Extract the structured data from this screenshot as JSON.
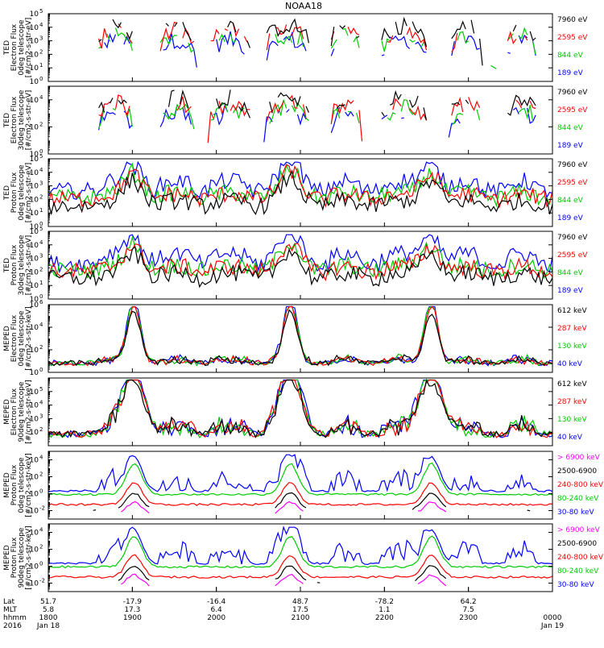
{
  "title": "NOAA18",
  "chart_data": [
    {
      "type": "line",
      "ylabel_lines": [
        "TED",
        "Electron Flux",
        "0deg telescope",
        "[#/cm2-s-str-eV]"
      ],
      "ylim_exp": [
        0,
        5
      ],
      "ytick_exps": [
        0,
        1,
        2,
        3,
        4,
        5
      ],
      "top_tick_label": "10",
      "series": [
        {
          "name": "7960 eV",
          "color": "#000000"
        },
        {
          "name": "2595 eV",
          "color": "#ff0000"
        },
        {
          "name": "844 eV",
          "color": "#00cc00"
        },
        {
          "name": "189 eV",
          "color": "#0000ff"
        }
      ]
    },
    {
      "type": "line",
      "ylabel_lines": [
        "TED",
        "Electron Flux",
        "30deg telescope",
        "[#/cm2-s-str-eV]"
      ],
      "ylim_exp": [
        0,
        5
      ],
      "ytick_exps": [
        0,
        2,
        4
      ],
      "top_tick_label": "10",
      "series": [
        {
          "name": "7960 eV",
          "color": "#000000"
        },
        {
          "name": "2595 eV",
          "color": "#ff0000"
        },
        {
          "name": "844 eV",
          "color": "#00cc00"
        },
        {
          "name": "189 eV",
          "color": "#0000ff"
        }
      ]
    },
    {
      "type": "line",
      "ylabel_lines": [
        "TED",
        "Proton Flux",
        "0deg telescope",
        "[#/cm2-s-str-eV]"
      ],
      "ylim_exp": [
        0,
        5
      ],
      "ytick_exps": [
        0,
        1,
        2,
        3,
        4,
        5
      ],
      "top_tick_label": "10",
      "series": [
        {
          "name": "7960 eV",
          "color": "#000000"
        },
        {
          "name": "2595 eV",
          "color": "#ff0000"
        },
        {
          "name": "844 eV",
          "color": "#00cc00"
        },
        {
          "name": "189 eV",
          "color": "#0000ff"
        }
      ]
    },
    {
      "type": "line",
      "ylabel_lines": [
        "TED",
        "Proton Flux",
        "30deg telescope",
        "[#/cm2-s-str-eV]"
      ],
      "ylim_exp": [
        0,
        5
      ],
      "ytick_exps": [
        0,
        1,
        2,
        3,
        4,
        5
      ],
      "top_tick_label": "10",
      "series": [
        {
          "name": "7960 eV",
          "color": "#000000"
        },
        {
          "name": "2595 eV",
          "color": "#ff0000"
        },
        {
          "name": "844 eV",
          "color": "#00cc00"
        },
        {
          "name": "189 eV",
          "color": "#0000ff"
        }
      ]
    },
    {
      "type": "line",
      "ylabel_lines": [
        "MEPED",
        "Electron Flux",
        "0deg telescope",
        "[#/cm2-s-str-keV]"
      ],
      "ylim_exp": [
        0,
        6
      ],
      "ytick_exps": [
        0,
        2,
        4,
        6
      ],
      "series": [
        {
          "name": "612 keV",
          "color": "#000000"
        },
        {
          "name": "287 keV",
          "color": "#ff0000"
        },
        {
          "name": "130 keV",
          "color": "#00cc00"
        },
        {
          "name": "40 keV",
          "color": "#0000ff"
        }
      ]
    },
    {
      "type": "line",
      "ylabel_lines": [
        "MEPED",
        "Electron Flux",
        "90deg telescope",
        "[#/cm2-s-str-keV]"
      ],
      "ylim_exp": [
        1,
        6
      ],
      "ytick_exps": [
        2,
        3,
        4,
        5
      ],
      "series": [
        {
          "name": "612 keV",
          "color": "#000000"
        },
        {
          "name": "287 keV",
          "color": "#ff0000"
        },
        {
          "name": "130 keV",
          "color": "#00cc00"
        },
        {
          "name": "40 keV",
          "color": "#0000ff"
        }
      ]
    },
    {
      "type": "line",
      "ylabel_lines": [
        "MEPED",
        "Proton Flux",
        "0deg telescope",
        "[#/cm2-s-str-keV]"
      ],
      "ylim_exp": [
        -3,
        5
      ],
      "ytick_exps": [
        -2,
        0,
        2,
        4
      ],
      "series": [
        {
          "name": "> 6900 keV",
          "color": "#ff00ff"
        },
        {
          "name": "2500-6900",
          "color": "#000000"
        },
        {
          "name": "240-800 keV",
          "color": "#ff0000"
        },
        {
          "name": "80-240 keV",
          "color": "#00cc00"
        },
        {
          "name": "30-80 keV",
          "color": "#0000ff"
        }
      ]
    },
    {
      "type": "line",
      "ylabel_lines": [
        "MEPED",
        "Proton Flux",
        "90deg telescope",
        "[#/cm2-s-str-keV]"
      ],
      "ylim_exp": [
        -3,
        5
      ],
      "ytick_exps": [
        -2,
        0,
        2,
        4
      ],
      "series": [
        {
          "name": "> 6900 keV",
          "color": "#ff00ff"
        },
        {
          "name": "2500-6900",
          "color": "#000000"
        },
        {
          "name": "240-800 keV",
          "color": "#ff0000"
        },
        {
          "name": "80-240 keV",
          "color": "#00cc00"
        },
        {
          "name": "30-80 keV",
          "color": "#0000ff"
        }
      ]
    }
  ],
  "x_axis": {
    "row_labels": [
      "Lat",
      "MLT",
      "hhmm",
      "2016"
    ],
    "ticks": [
      {
        "lat": "51.7",
        "mlt": "5.8",
        "time": "1800",
        "date": "Jan 18",
        "frac": 0.0
      },
      {
        "lat": "-17.9",
        "mlt": "17.3",
        "time": "1900",
        "date": "",
        "frac": 0.1667
      },
      {
        "lat": "-16.4",
        "mlt": "6.4",
        "time": "2000",
        "date": "",
        "frac": 0.3333
      },
      {
        "lat": "48.7",
        "mlt": "17.5",
        "time": "2100",
        "date": "",
        "frac": 0.5
      },
      {
        "lat": "-78.2",
        "mlt": "1.1",
        "time": "2200",
        "date": "",
        "frac": 0.6667
      },
      {
        "lat": "64.2",
        "mlt": "7.5",
        "time": "2300",
        "date": "",
        "frac": 0.8333
      },
      {
        "lat": "",
        "mlt": "",
        "time": "0000",
        "date": "Jan 19",
        "frac": 1.0
      }
    ]
  }
}
